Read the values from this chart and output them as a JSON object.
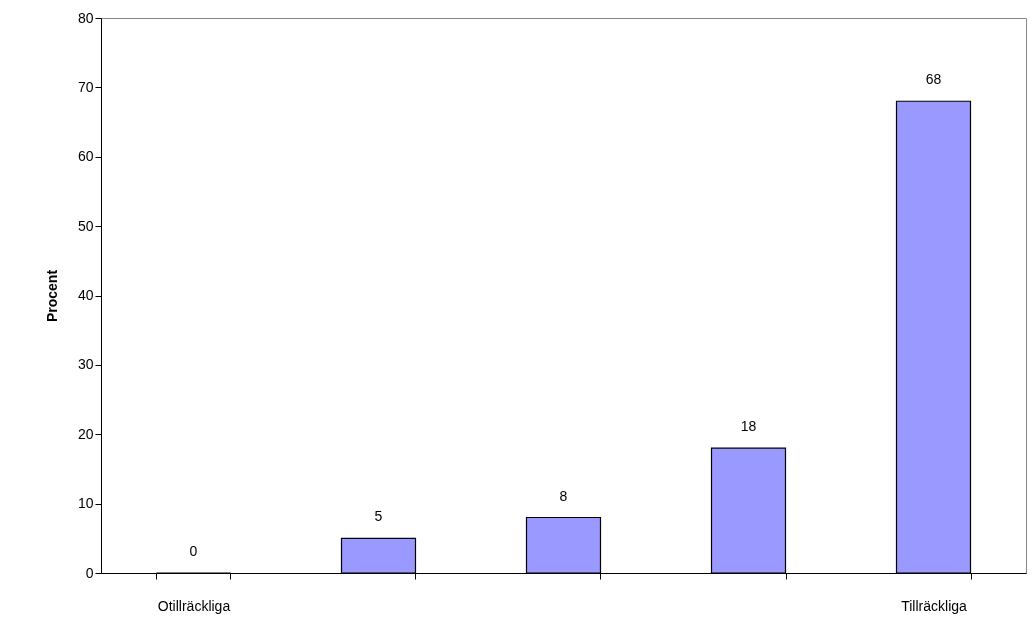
{
  "chart_data": {
    "type": "bar",
    "ylabel": "Procent",
    "categories": [
      "Otillräckliga",
      null,
      null,
      null,
      "Tillräckliga"
    ],
    "values": [
      0,
      5,
      8,
      18,
      68
    ],
    "color": "#9999ff",
    "ylim": [
      0,
      80
    ],
    "yticks": [
      0,
      10,
      20,
      30,
      40,
      50,
      60,
      70,
      80
    ],
    "data_labels": true,
    "grid": false
  }
}
